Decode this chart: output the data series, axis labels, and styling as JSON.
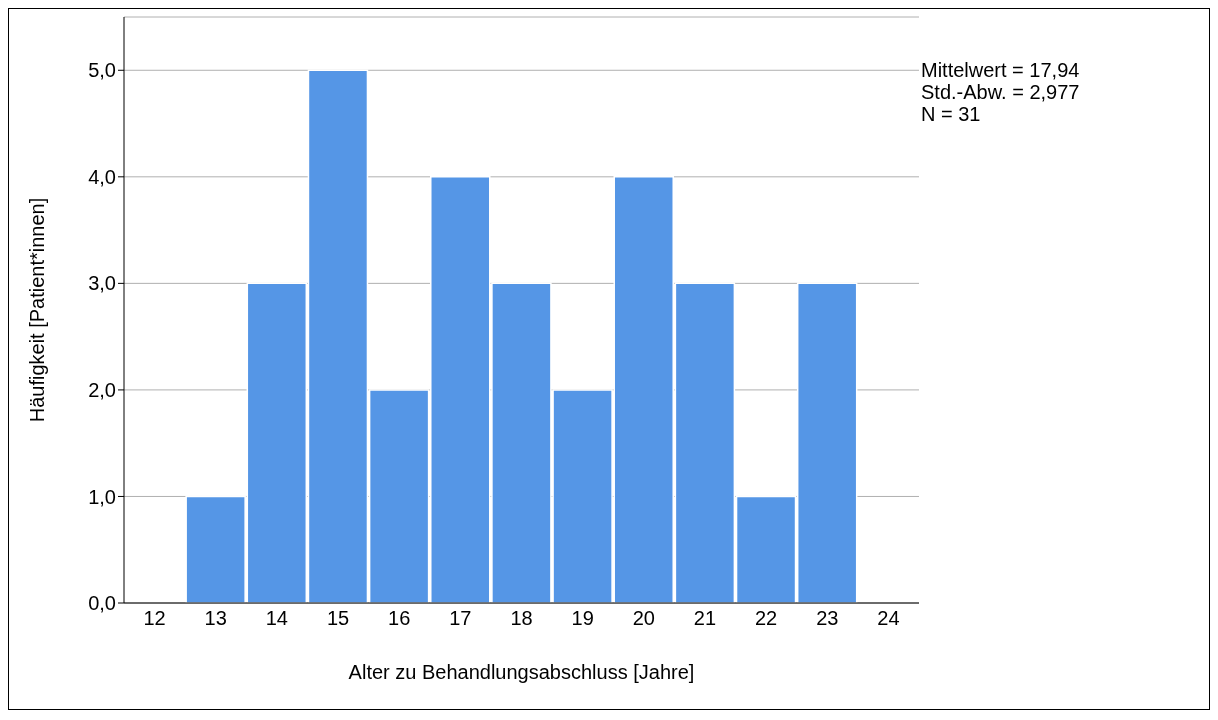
{
  "chart_data": {
    "type": "bar",
    "xlabel": "Alter zu Behandlungsabschluss [Jahre]",
    "ylabel": "Häufigkeit [Patient*innen]",
    "categories": [
      "12",
      "13",
      "14",
      "15",
      "16",
      "17",
      "18",
      "19",
      "20",
      "21",
      "22",
      "23",
      "24"
    ],
    "values": [
      0,
      1,
      3,
      5,
      2,
      4,
      3,
      2,
      4,
      3,
      1,
      3,
      0
    ],
    "color": "#5596e6",
    "ylim": [
      0,
      5.5
    ],
    "yticks": [
      {
        "value": 0,
        "label": "0,0"
      },
      {
        "value": 1,
        "label": "1,0"
      },
      {
        "value": 2,
        "label": "2,0"
      },
      {
        "value": 3,
        "label": "3,0"
      },
      {
        "value": 4,
        "label": "4,0"
      },
      {
        "value": 5,
        "label": "5,0"
      }
    ],
    "grid": "y",
    "annotations": [
      "Mittelwert = 17,94",
      "Std.-Abw. = 2,977",
      "N = 31"
    ]
  }
}
